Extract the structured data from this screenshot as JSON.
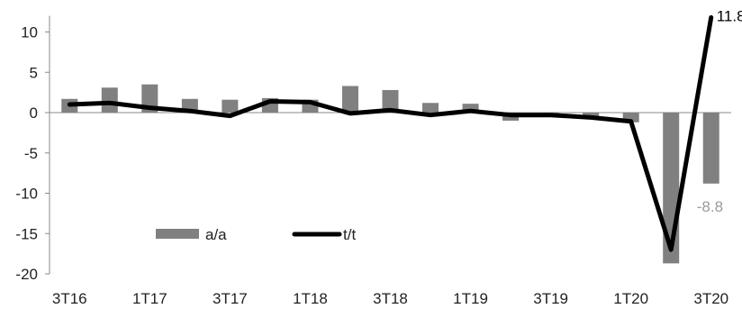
{
  "chart_data": {
    "type": "bar",
    "categories": [
      "3T16",
      "4T16",
      "1T17",
      "2T17",
      "3T17",
      "4T17",
      "1T18",
      "2T18",
      "3T18",
      "4T18",
      "1T19",
      "2T19",
      "3T19",
      "4T19",
      "1T20",
      "2T20",
      "3T20"
    ],
    "tick_labels": [
      "3T16",
      "1T17",
      "3T17",
      "1T18",
      "3T18",
      "1T19",
      "3T19",
      "1T20",
      "3T20"
    ],
    "yticks": [
      10,
      5,
      0,
      -5,
      -10,
      -15,
      -20
    ],
    "ylim": [
      -20,
      12
    ],
    "grid": false,
    "legend_position": "bottom-left",
    "series": [
      {
        "name": "a/a",
        "type": "bar",
        "color": "#808080",
        "values": [
          1.7,
          3.1,
          3.5,
          1.7,
          1.6,
          1.8,
          1.6,
          3.3,
          2.8,
          1.2,
          1.1,
          -1.0,
          -0.3,
          -0.6,
          -1.2,
          -18.7,
          -8.8
        ]
      },
      {
        "name": "t/t",
        "type": "line",
        "color": "#000000",
        "values": [
          1.0,
          1.2,
          0.6,
          0.2,
          -0.4,
          1.4,
          1.3,
          -0.1,
          0.3,
          -0.3,
          0.2,
          -0.3,
          -0.3,
          -0.6,
          -1.1,
          -17.0,
          11.8
        ]
      }
    ],
    "annotations": [
      {
        "series": "t/t",
        "category": "3T20",
        "text": "11.8",
        "color": "#000000"
      },
      {
        "series": "a/a",
        "category": "3T20",
        "text": "-8.8",
        "color": "#9a9a9a"
      }
    ]
  }
}
